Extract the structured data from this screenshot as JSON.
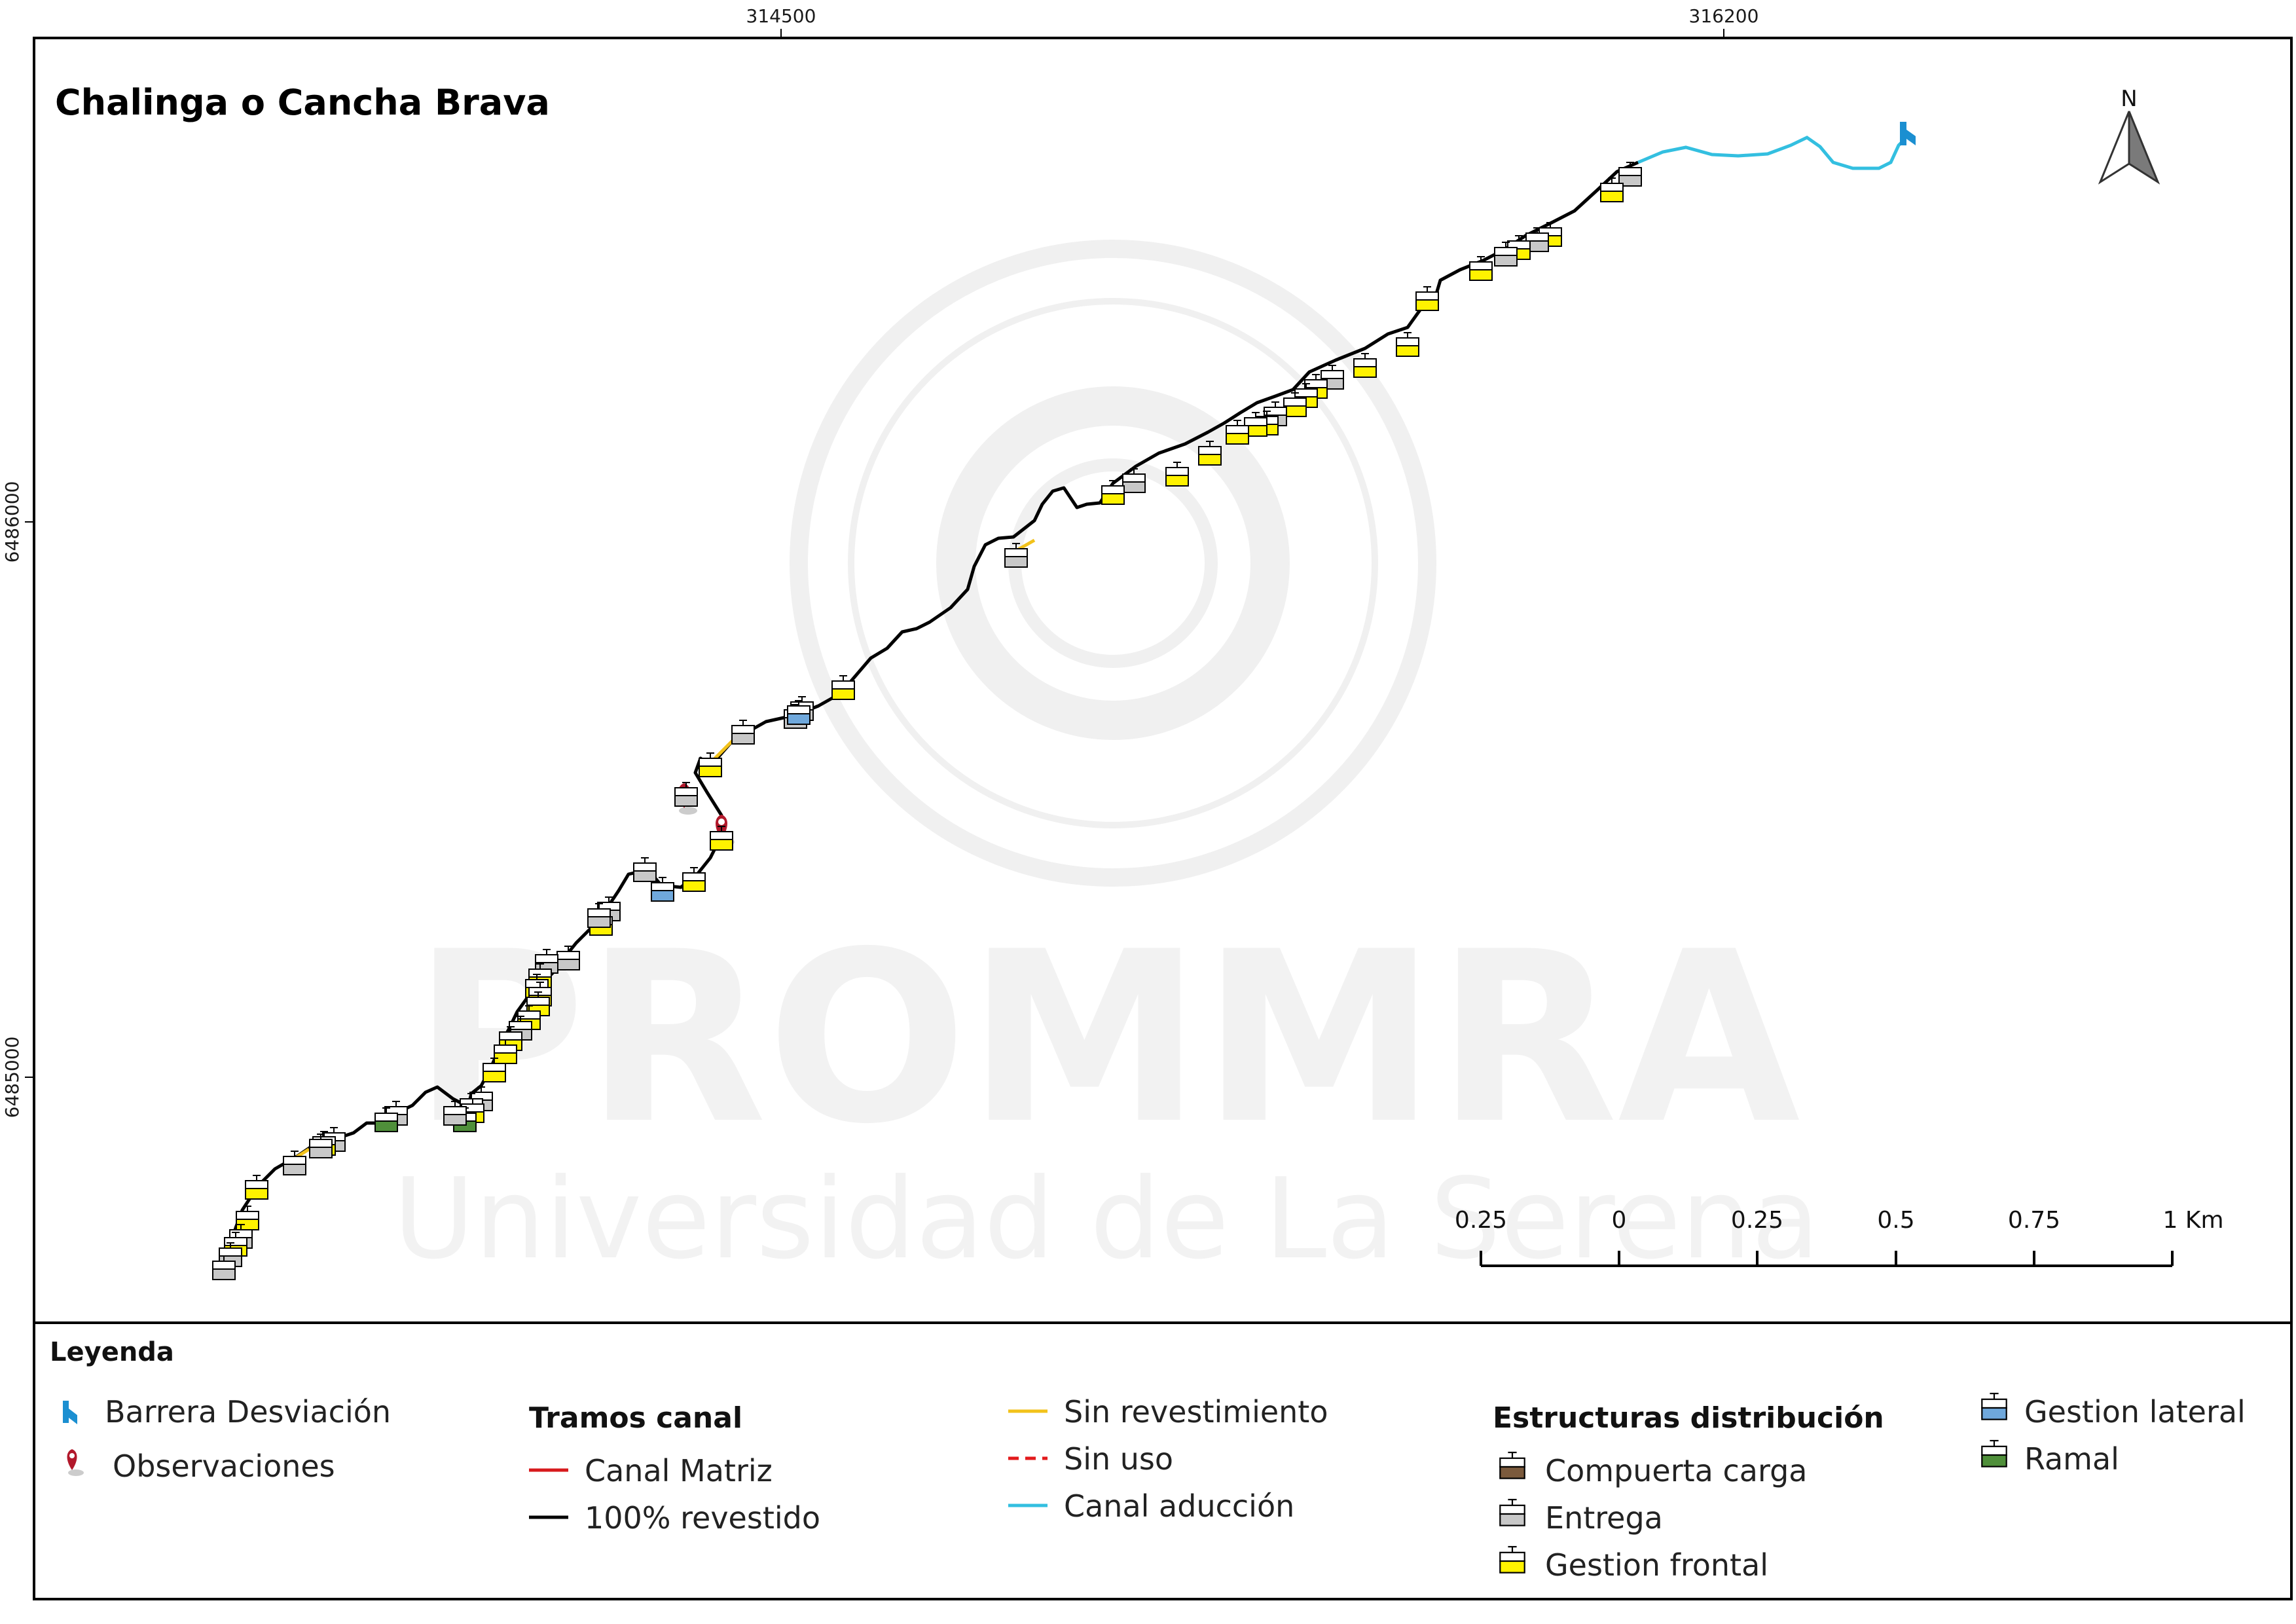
{
  "title": "Chalinga o Cancha Brava",
  "coords": {
    "x_ticks": [
      "314500",
      "316200"
    ],
    "y_ticks": [
      "6486000",
      "6485000"
    ]
  },
  "north_arrow": {
    "label": "N",
    "icon": "north-arrow-icon"
  },
  "watermark": {
    "line1": "PROMMRA",
    "line2": "Universidad de La Serena"
  },
  "scale_bar": {
    "labels": [
      "0.25",
      "0",
      "0.25",
      "0.5",
      "0.75",
      "1 Km"
    ]
  },
  "legend": {
    "title": "Leyenda",
    "barrera": "Barrera Desviación",
    "observaciones": "Observaciones",
    "tramos_title": "Tramos canal",
    "tramos": [
      {
        "label": "Canal Matriz",
        "color": "#d7191c",
        "style": "solid"
      },
      {
        "label": "100% revestido",
        "color": "#000000",
        "style": "solid"
      },
      {
        "label": "Sin revestimiento",
        "color": "#f2c21b",
        "style": "solid"
      },
      {
        "label": "Sin uso",
        "color": "#e31a1c",
        "style": "dashed"
      },
      {
        "label": "Canal aducción",
        "color": "#33bfe0",
        "style": "solid"
      }
    ],
    "estructuras_title": "Estructuras distribución",
    "estructuras": [
      {
        "label": "Compuerta carga",
        "color": "#7b5a3c"
      },
      {
        "label": "Entrega",
        "color": "#c8c8c8"
      },
      {
        "label": "Gestion frontal",
        "color": "#fff200"
      },
      {
        "label": "Gestion lateral",
        "color": "#6fa8dc"
      },
      {
        "label": "Ramal",
        "color": "#4f8f3a"
      }
    ]
  },
  "colors": {
    "canal_revestido": "#000000",
    "sin_revestimiento": "#f2c21b",
    "canal_aduccion": "#33bfe0",
    "barrera": "#1b8fd1",
    "observacion": "#b2182b"
  }
}
